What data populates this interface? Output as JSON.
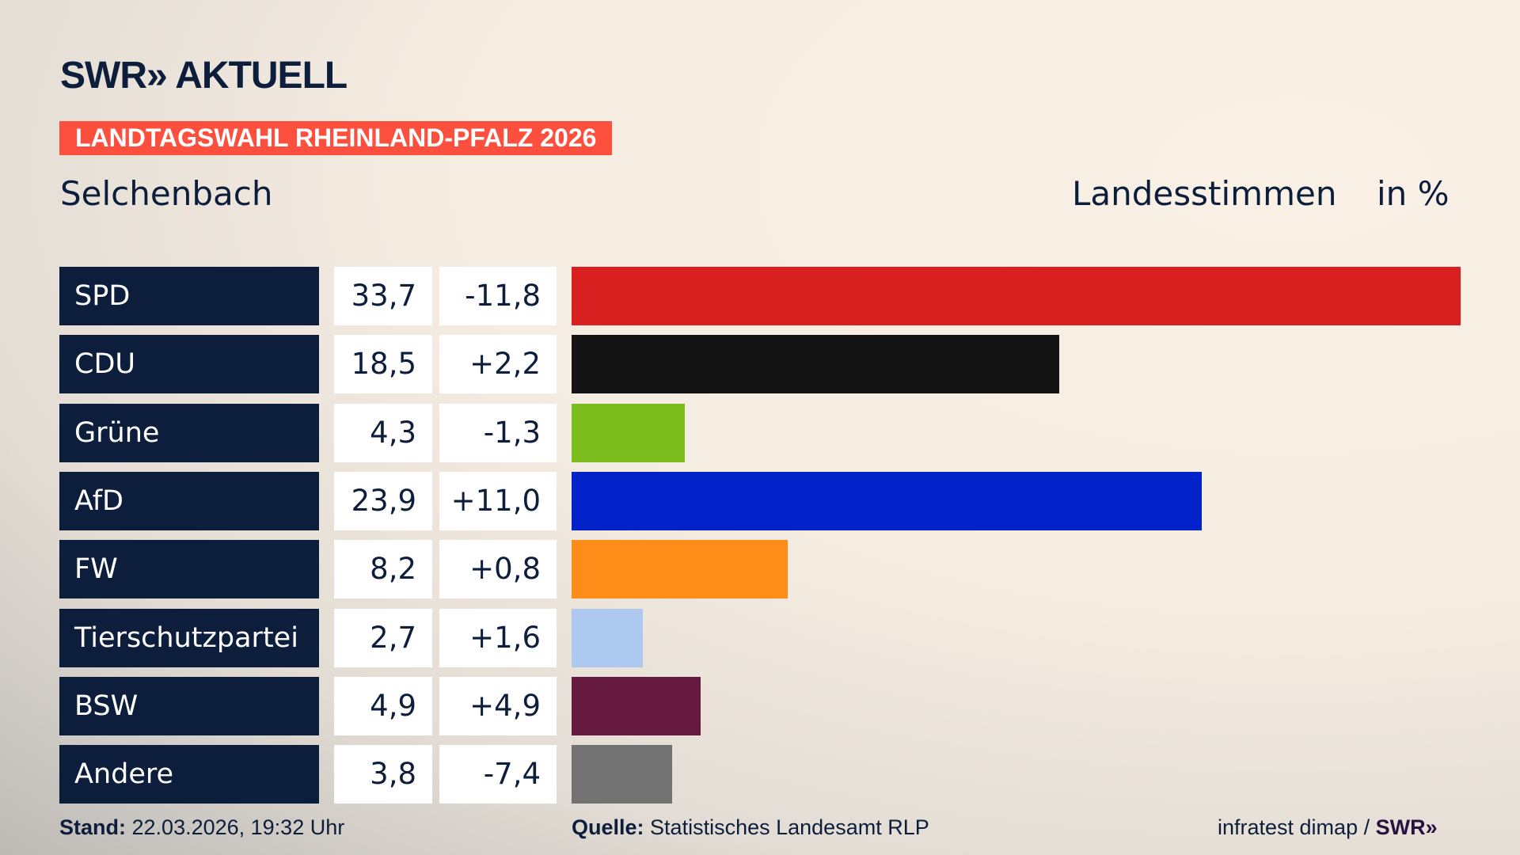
{
  "header": {
    "logo": "SWR» AKTUELL",
    "banner": "LANDTAGSWAHL RHEINLAND-PFALZ 2026",
    "place": "Selchenbach",
    "measure": "Landesstimmen",
    "unit": "in %"
  },
  "chart_data": {
    "type": "bar",
    "orientation": "horizontal",
    "xlim": [
      0,
      33.7
    ],
    "categories": [
      "SPD",
      "CDU",
      "Grüne",
      "AfD",
      "FW",
      "Tierschutzpartei",
      "BSW",
      "Andere"
    ],
    "values": [
      33.7,
      18.5,
      4.3,
      23.9,
      8.2,
      2.7,
      4.9,
      3.8
    ],
    "value_labels": [
      "33,7",
      "18,5",
      "4,3",
      "23,9",
      "8,2",
      "2,7",
      "4,9",
      "3,8"
    ],
    "diff_labels": [
      "-11,8",
      "+2,2",
      "-1,3",
      "+11,0",
      "+0,8",
      "+1,6",
      "+4,9",
      "-7,4"
    ],
    "colors": [
      "#d82020",
      "#141414",
      "#7abd1c",
      "#0022c8",
      "#fe8c18",
      "#adc9f0",
      "#661a3f",
      "#727272"
    ]
  },
  "footer": {
    "stand_label": "Stand:",
    "stand_value": "22.03.2026, 19:32 Uhr",
    "source_label": "Quelle:",
    "source_value": "Statistisches Landesamt RLP",
    "credit": "infratest dimap / ",
    "credit_logo": "SWR»"
  }
}
